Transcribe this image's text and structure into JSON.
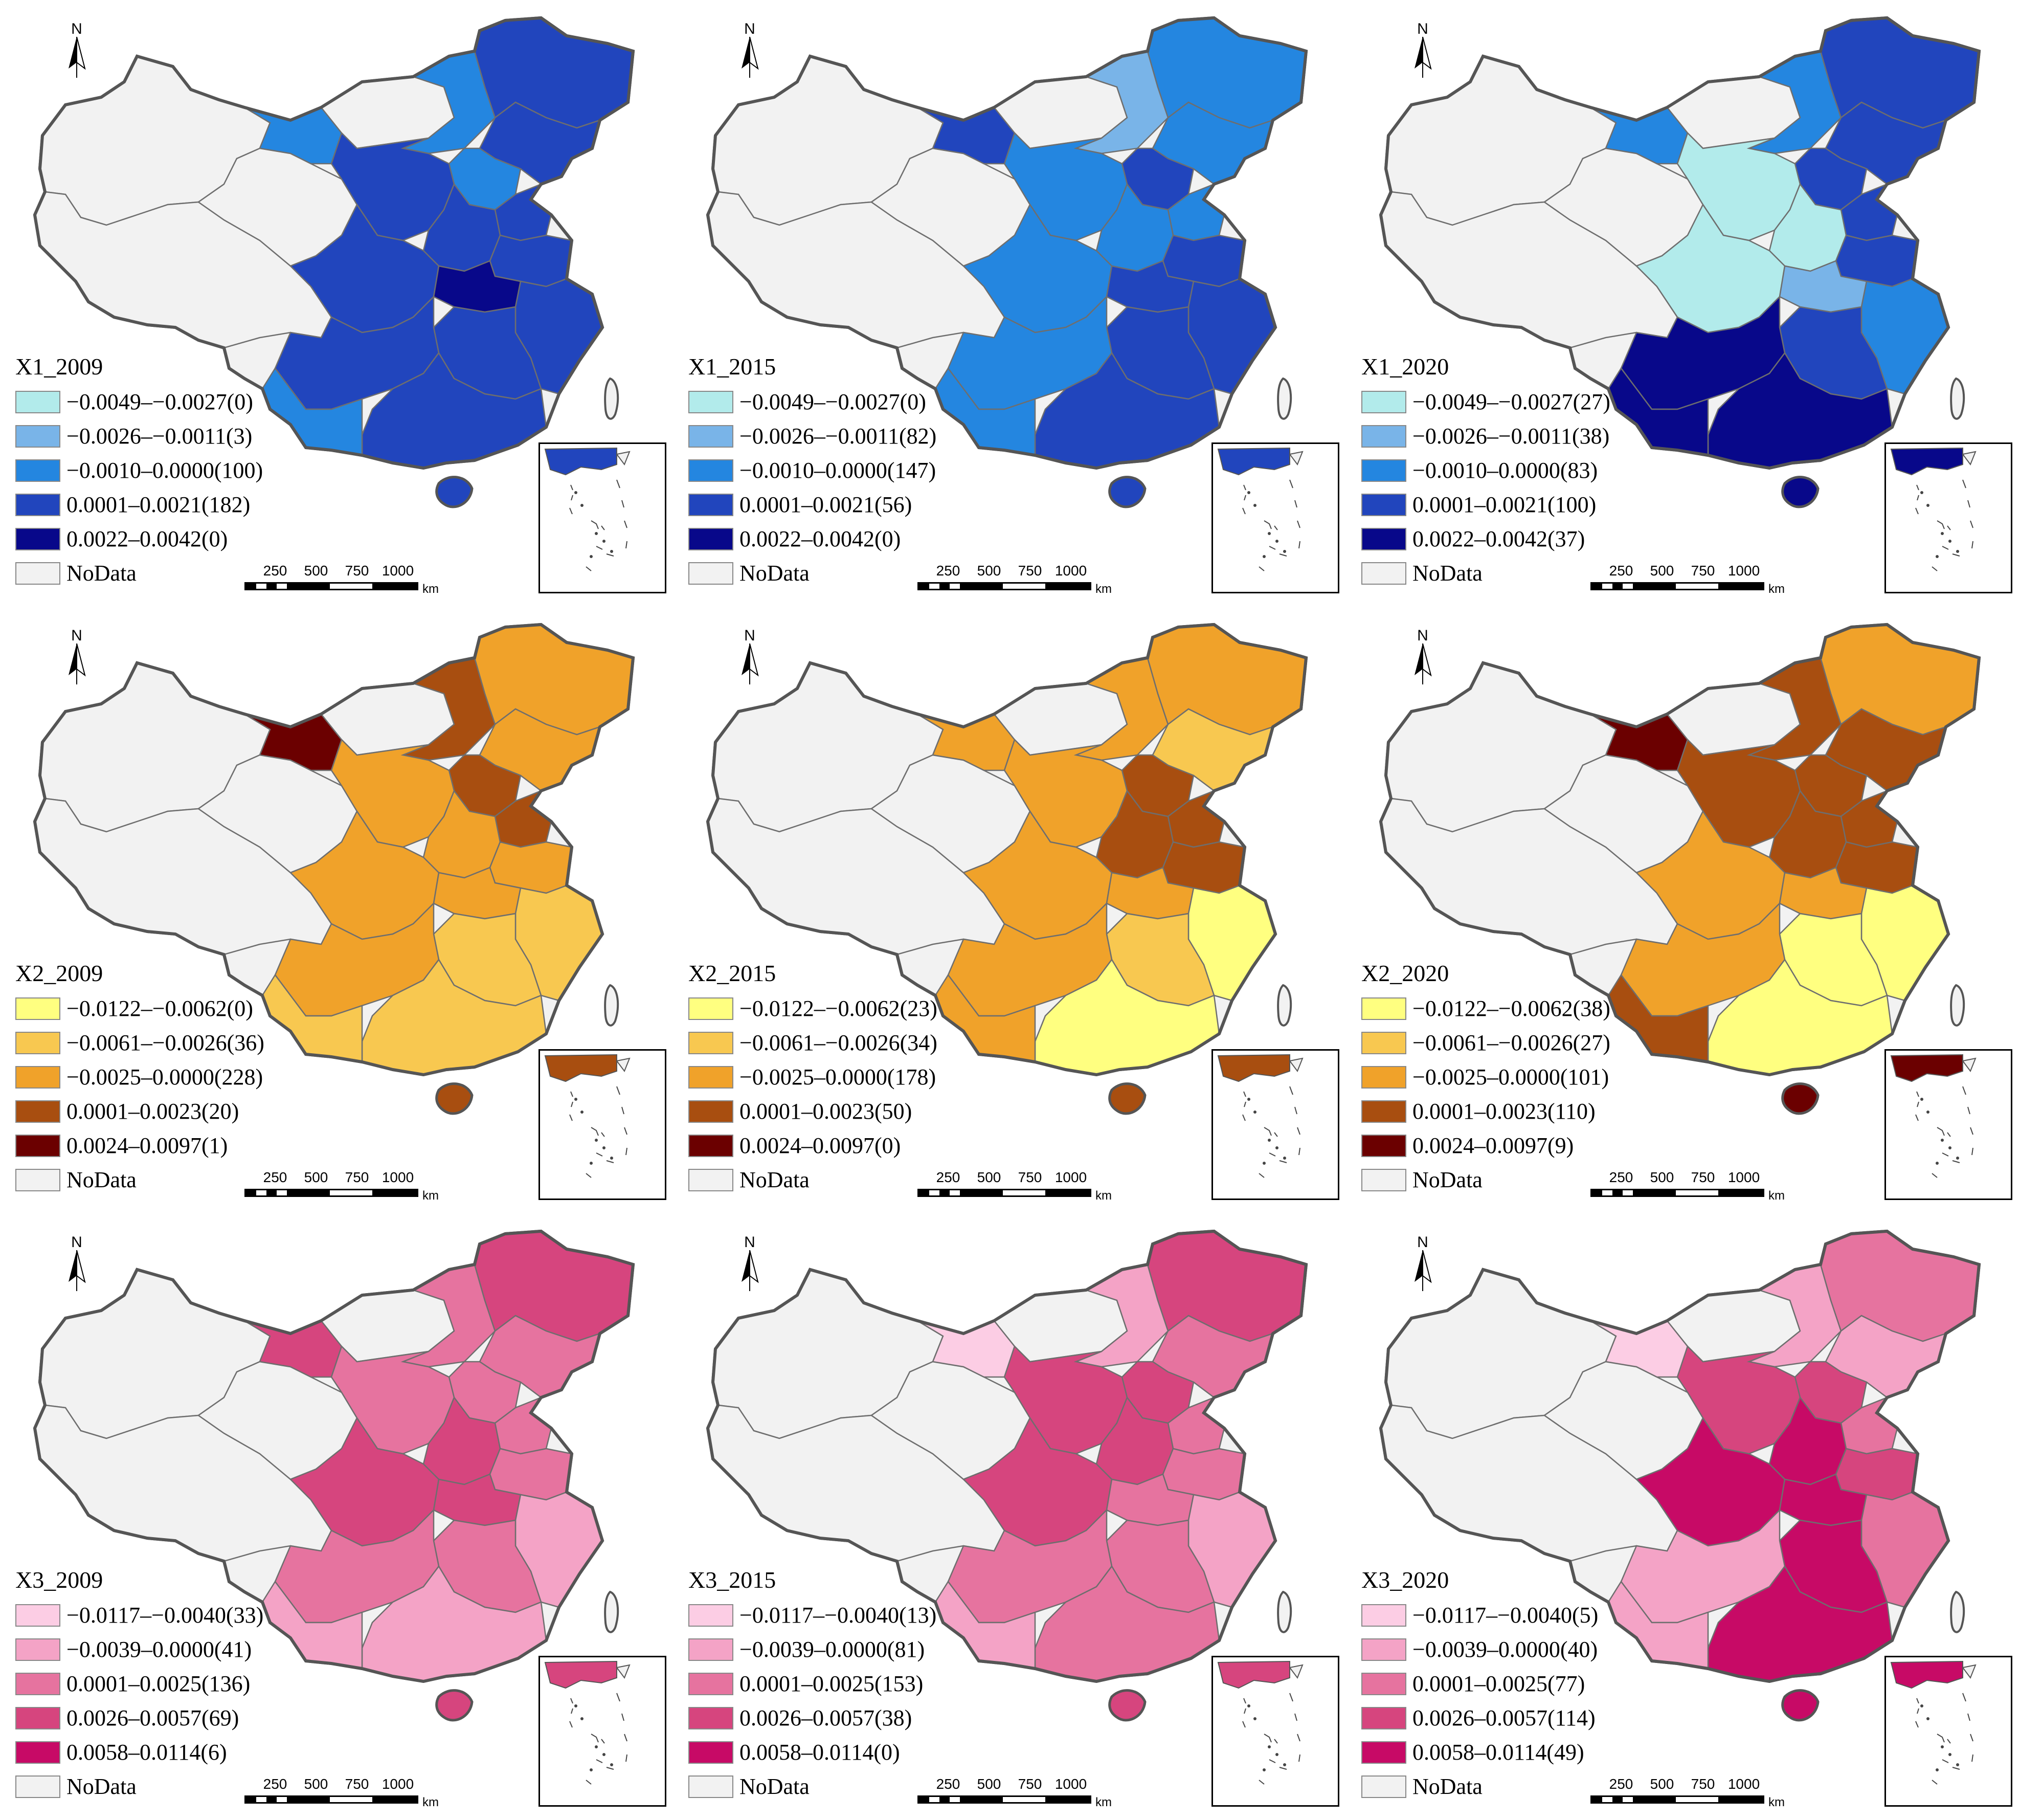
{
  "colors": {
    "nodata": "#f2f2f2",
    "border": "#6e6e6e"
  },
  "panels": [
    {
      "title": "X1_2009",
      "north": "N",
      "scale": {
        "ticks": [
          "250",
          "500",
          "750",
          "1000"
        ],
        "unit": "km"
      },
      "legend": [
        {
          "label": "−0.0049–−0.0027(0)",
          "color": "#b2ebeb"
        },
        {
          "label": "−0.0026–−0.0011(3)",
          "color": "#79b4e8"
        },
        {
          "label": "−0.0010–0.0000(100)",
          "color": "#2486e0"
        },
        {
          "label": "0.0001–0.0021(182)",
          "color": "#2145bd"
        },
        {
          "label": "0.0022–0.0042(0)",
          "color": "#08088a"
        },
        {
          "label": "NoData",
          "color": "#f2f2f2"
        }
      ]
    },
    {
      "title": "X1_2015",
      "north": "N",
      "scale": {
        "ticks": [
          "250",
          "500",
          "750",
          "1000"
        ],
        "unit": "km"
      },
      "legend": [
        {
          "label": "−0.0049–−0.0027(0)",
          "color": "#b2ebeb"
        },
        {
          "label": "−0.0026–−0.0011(82)",
          "color": "#79b4e8"
        },
        {
          "label": "−0.0010–0.0000(147)",
          "color": "#2486e0"
        },
        {
          "label": "0.0001–0.0021(56)",
          "color": "#2145bd"
        },
        {
          "label": "0.0022–0.0042(0)",
          "color": "#08088a"
        },
        {
          "label": "NoData",
          "color": "#f2f2f2"
        }
      ]
    },
    {
      "title": "X1_2020",
      "north": "N",
      "scale": {
        "ticks": [
          "250",
          "500",
          "750",
          "1000"
        ],
        "unit": "km"
      },
      "legend": [
        {
          "label": "−0.0049–−0.0027(27)",
          "color": "#b2ebeb"
        },
        {
          "label": "−0.0026–−0.0011(38)",
          "color": "#79b4e8"
        },
        {
          "label": "−0.0010–0.0000(83)",
          "color": "#2486e0"
        },
        {
          "label": "0.0001–0.0021(100)",
          "color": "#2145bd"
        },
        {
          "label": "0.0022–0.0042(37)",
          "color": "#08088a"
        },
        {
          "label": "NoData",
          "color": "#f2f2f2"
        }
      ]
    },
    {
      "title": "X2_2009",
      "north": "N",
      "scale": {
        "ticks": [
          "250",
          "500",
          "750",
          "1000"
        ],
        "unit": "km"
      },
      "legend": [
        {
          "label": "−0.0122–−0.0062(0)",
          "color": "#ffff80"
        },
        {
          "label": "−0.0061–−0.0026(36)",
          "color": "#f8c850"
        },
        {
          "label": "−0.0025–0.0000(228)",
          "color": "#f0a22a"
        },
        {
          "label": "0.0001–0.0023(20)",
          "color": "#a84e10"
        },
        {
          "label": "0.0024–0.0097(1)",
          "color": "#6b0000"
        },
        {
          "label": "NoData",
          "color": "#f2f2f2"
        }
      ]
    },
    {
      "title": "X2_2015",
      "north": "N",
      "scale": {
        "ticks": [
          "250",
          "500",
          "750",
          "1000"
        ],
        "unit": "km"
      },
      "legend": [
        {
          "label": "−0.0122–−0.0062(23)",
          "color": "#ffff80"
        },
        {
          "label": "−0.0061–−0.0026(34)",
          "color": "#f8c850"
        },
        {
          "label": "−0.0025–0.0000(178)",
          "color": "#f0a22a"
        },
        {
          "label": "0.0001–0.0023(50)",
          "color": "#a84e10"
        },
        {
          "label": "0.0024–0.0097(0)",
          "color": "#6b0000"
        },
        {
          "label": "NoData",
          "color": "#f2f2f2"
        }
      ]
    },
    {
      "title": "X2_2020",
      "north": "N",
      "scale": {
        "ticks": [
          "250",
          "500",
          "750",
          "1000"
        ],
        "unit": "km"
      },
      "legend": [
        {
          "label": "−0.0122–−0.0062(38)",
          "color": "#ffff80"
        },
        {
          "label": "−0.0061–−0.0026(27)",
          "color": "#f8c850"
        },
        {
          "label": "−0.0025–0.0000(101)",
          "color": "#f0a22a"
        },
        {
          "label": "0.0001–0.0023(110)",
          "color": "#a84e10"
        },
        {
          "label": "0.0024–0.0097(9)",
          "color": "#6b0000"
        },
        {
          "label": "NoData",
          "color": "#f2f2f2"
        }
      ]
    },
    {
      "title": "X3_2009",
      "north": "N",
      "scale": {
        "ticks": [
          "250",
          "500",
          "750",
          "1000"
        ],
        "unit": "km"
      },
      "legend": [
        {
          "label": "−0.0117–−0.0040(33)",
          "color": "#fccde4"
        },
        {
          "label": "−0.0039–0.0000(41)",
          "color": "#f4a3c6"
        },
        {
          "label": "0.0001–0.0025(136)",
          "color": "#e6739f"
        },
        {
          "label": "0.0026–0.0057(69)",
          "color": "#d6457e"
        },
        {
          "label": "0.0058–0.0114(6)",
          "color": "#c70a66"
        },
        {
          "label": "NoData",
          "color": "#f2f2f2"
        }
      ]
    },
    {
      "title": "X3_2015",
      "north": "N",
      "scale": {
        "ticks": [
          "250",
          "500",
          "750",
          "1000"
        ],
        "unit": "km"
      },
      "legend": [
        {
          "label": "−0.0117–−0.0040(13)",
          "color": "#fccde4"
        },
        {
          "label": "−0.0039–0.0000(81)",
          "color": "#f4a3c6"
        },
        {
          "label": "0.0001–0.0025(153)",
          "color": "#e6739f"
        },
        {
          "label": "0.0026–0.0057(38)",
          "color": "#d6457e"
        },
        {
          "label": "0.0058–0.0114(0)",
          "color": "#c70a66"
        },
        {
          "label": "NoData",
          "color": "#f2f2f2"
        }
      ]
    },
    {
      "title": "X3_2020",
      "north": "N",
      "scale": {
        "ticks": [
          "250",
          "500",
          "750",
          "1000"
        ],
        "unit": "km"
      },
      "legend": [
        {
          "label": "−0.0117–−0.0040(5)",
          "color": "#fccde4"
        },
        {
          "label": "−0.0039–0.0000(40)",
          "color": "#f4a3c6"
        },
        {
          "label": "0.0001–0.0025(77)",
          "color": "#e6739f"
        },
        {
          "label": "0.0026–0.0057(114)",
          "color": "#d6457e"
        },
        {
          "label": "0.0058–0.0114(49)",
          "color": "#c70a66"
        },
        {
          "label": "NoData",
          "color": "#f2f2f2"
        }
      ]
    }
  ]
}
